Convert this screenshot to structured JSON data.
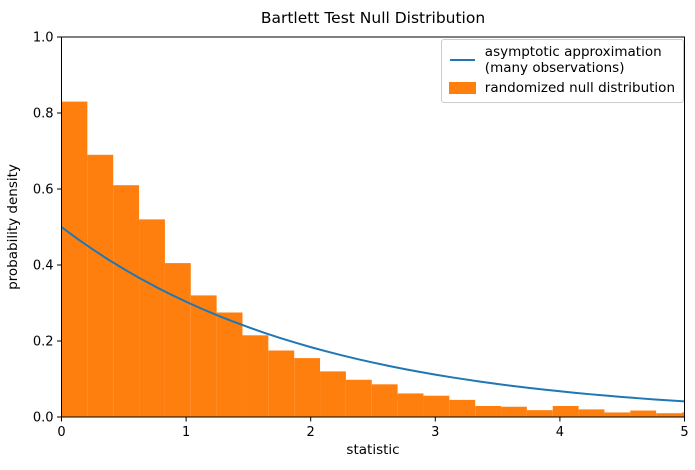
{
  "chart_data": {
    "type": "histogram+line",
    "title": "Bartlett Test Null Distribution",
    "xlabel": "statistic",
    "ylabel": "probability density",
    "xlim": [
      0,
      5
    ],
    "ylim": [
      0,
      1
    ],
    "grid": false,
    "xticks": {
      "values": [
        0,
        1,
        2,
        3,
        4,
        5
      ],
      "labels": [
        "0",
        "1",
        "2",
        "3",
        "4",
        "5"
      ]
    },
    "yticks": {
      "values": [
        0,
        0.2,
        0.4,
        0.6,
        0.8,
        1.0
      ],
      "labels": [
        "0.0",
        "0.2",
        "0.4",
        "0.6",
        "0.8",
        "1.0"
      ]
    },
    "legend": {
      "position": "upper right",
      "entries": [
        {
          "swatch": "line",
          "color": "#1f77b4",
          "label_lines": [
            "asymptotic approximation",
            "(many observations)"
          ]
        },
        {
          "swatch": "patch",
          "color": "#ff7f0e",
          "label_lines": [
            "randomized null distribution"
          ]
        }
      ]
    },
    "series": [
      {
        "name": "asymptotic approximation (many observations)",
        "type": "line",
        "color": "#1f77b4",
        "x": [
          0,
          0.125,
          0.25,
          0.375,
          0.5,
          0.625,
          0.75,
          0.875,
          1,
          1.125,
          1.25,
          1.375,
          1.5,
          1.625,
          1.75,
          1.875,
          2,
          2.125,
          2.25,
          2.375,
          2.5,
          2.625,
          2.75,
          2.875,
          3,
          3.125,
          3.25,
          3.375,
          3.5,
          3.625,
          3.75,
          3.875,
          4,
          4.125,
          4.25,
          4.375,
          4.5,
          4.625,
          4.75,
          4.875,
          5
        ],
        "y": [
          0.5,
          0.4697,
          0.4413,
          0.4145,
          0.3894,
          0.3658,
          0.3436,
          0.3228,
          0.3033,
          0.2849,
          0.2676,
          0.2514,
          0.2362,
          0.2219,
          0.2084,
          0.1958,
          0.1839,
          0.1728,
          0.1623,
          0.1525,
          0.1433,
          0.1346,
          0.1264,
          0.1188,
          0.1116,
          0.1048,
          0.0985,
          0.0925,
          0.0869,
          0.0816,
          0.0767,
          0.072,
          0.0677,
          0.0636,
          0.0597,
          0.0561,
          0.0527,
          0.0495,
          0.0465,
          0.0437,
          0.041
        ]
      },
      {
        "name": "randomized null distribution",
        "type": "histogram",
        "color": "#ff7f0e",
        "bin_start": 0,
        "bin_width": 0.2075,
        "densities": [
          0.83,
          0.69,
          0.61,
          0.52,
          0.405,
          0.32,
          0.275,
          0.215,
          0.175,
          0.155,
          0.12,
          0.098,
          0.086,
          0.062,
          0.056,
          0.045,
          0.029,
          0.027,
          0.018,
          0.029,
          0.02,
          0.012,
          0.017,
          0.01,
          0.012
        ]
      }
    ]
  },
  "colors": {
    "axis": "#000000",
    "background": "#ffffff",
    "legend_border": "#cccccc"
  }
}
